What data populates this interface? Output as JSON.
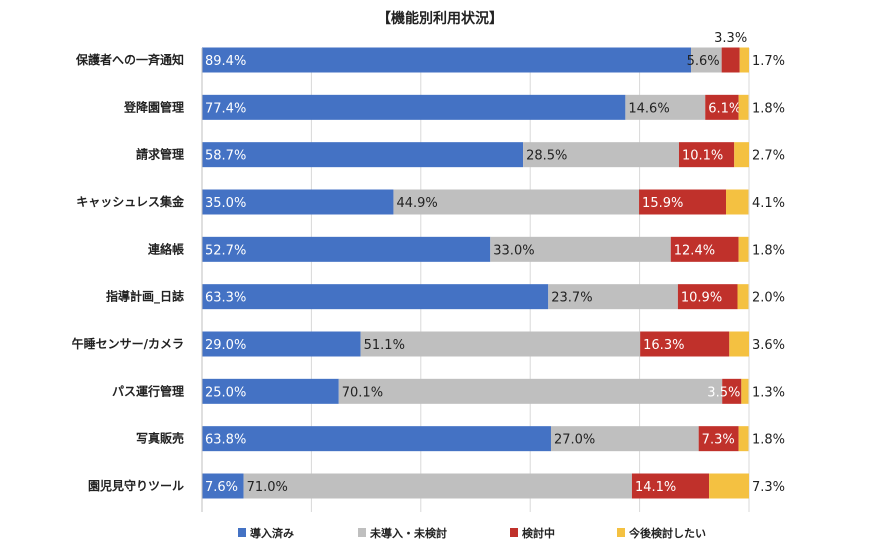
{
  "chart_data": {
    "type": "bar",
    "orientation": "horizontal",
    "stacked": true,
    "title": "【機能別利用状況】",
    "xlim": [
      0,
      100
    ],
    "grid": true,
    "legend_position": "bottom",
    "categories": [
      "保護者への一斉通知",
      "登降園管理",
      "請求管理",
      "キャッシュレス集金",
      "連絡帳",
      "指導計画_日誌",
      "午睡センサー/カメラ",
      "パス運行管理",
      "写真販売",
      "園児見守りツール"
    ],
    "series": [
      {
        "name": "導入済み",
        "color": "#4472c4",
        "values": [
          89.4,
          77.4,
          58.7,
          35.0,
          52.7,
          63.3,
          29.0,
          25.0,
          63.8,
          7.6
        ]
      },
      {
        "name": "未導入・未検討",
        "color": "#bfbfbf",
        "values": [
          5.6,
          14.6,
          28.5,
          44.9,
          33.0,
          23.7,
          51.1,
          70.1,
          27.0,
          71.0
        ]
      },
      {
        "name": "検討中",
        "color": "#c0312b",
        "values": [
          3.3,
          6.1,
          10.1,
          15.9,
          12.4,
          10.9,
          16.3,
          3.5,
          7.3,
          14.1
        ]
      },
      {
        "name": "今後検討したい",
        "color": "#f4c141",
        "values": [
          1.7,
          1.8,
          2.7,
          4.1,
          1.8,
          2.0,
          3.6,
          1.3,
          1.8,
          7.3
        ]
      }
    ]
  }
}
